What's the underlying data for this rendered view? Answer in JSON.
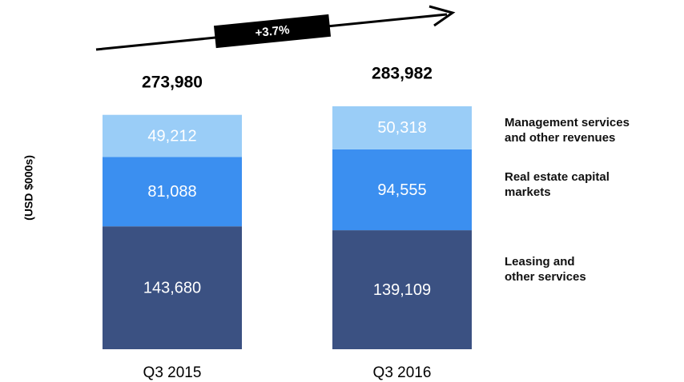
{
  "chart_data": {
    "type": "stacked-bar",
    "y_label": "(USD $000s)",
    "categories": [
      "Q3 2015",
      "Q3 2016"
    ],
    "series": [
      {
        "name": "Leasing and\nother services",
        "color": "#3b5182",
        "values": [
          143680,
          139109
        ],
        "value_labels": [
          "143,680",
          "139,109"
        ]
      },
      {
        "name": "Real estate capital\nmarkets",
        "color": "#3b8ff0",
        "values": [
          81088,
          94555
        ],
        "value_labels": [
          "81,088",
          "94,555"
        ]
      },
      {
        "name": "Management services\nand other revenues",
        "color": "#9acdf7",
        "values": [
          49212,
          50318
        ],
        "value_labels": [
          "49,212",
          "50,318"
        ]
      }
    ],
    "totals": [
      273980,
      283982
    ],
    "total_labels": [
      "273,980",
      "283,982"
    ],
    "growth_label": "+3.7%"
  }
}
